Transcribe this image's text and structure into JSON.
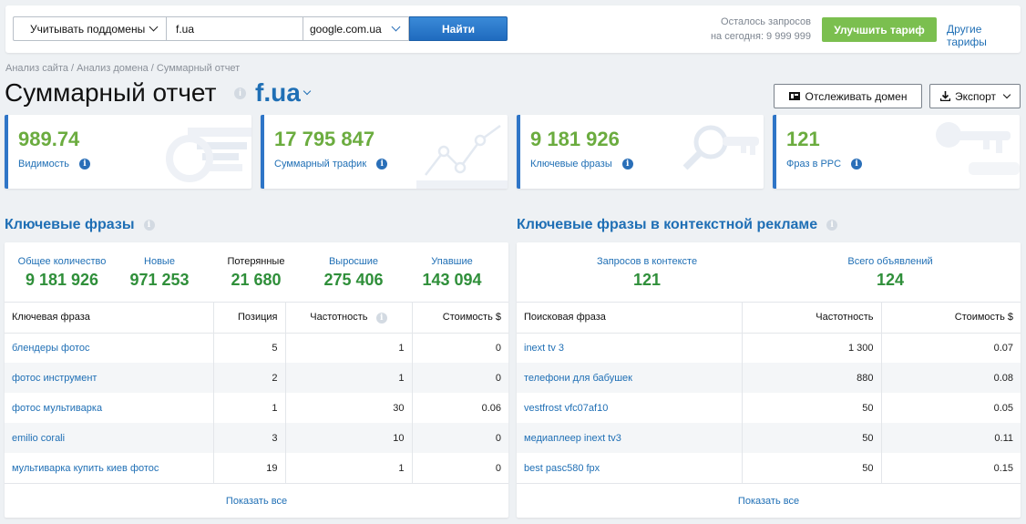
{
  "search": {
    "subdomains_label": "Учитывать поддомены",
    "domain_value": "f.ua",
    "engine_value": "google.com.ua",
    "find_label": "Найти"
  },
  "quota": {
    "line1": "Осталось запросов",
    "line2": "на сегодня: 9 999 999"
  },
  "upgrade_label": "Улучшить тариф",
  "other_tariffs_label": "Другие тарифы",
  "breadcrumb": "Анализ сайта / Анализ домена / Суммарный отчет",
  "page": {
    "title": "Суммарный отчет",
    "domain": "f.ua"
  },
  "actions": {
    "track_label": "Отслеживать домен",
    "export_label": "Экспорт"
  },
  "cards": [
    {
      "value": "989.74",
      "label": "Видимость"
    },
    {
      "value": "17 795 847",
      "label": "Суммарный трафик"
    },
    {
      "value": "9 181 926",
      "label": "Ключевые фразы"
    },
    {
      "value": "121",
      "label": "Фраз в PPC"
    }
  ],
  "keywords": {
    "title": "Ключевые фразы",
    "metrics": [
      {
        "label": "Общее количество",
        "value": "9 181 926"
      },
      {
        "label": "Новые",
        "value": "971 253"
      },
      {
        "label": "Потерянные",
        "value": "21 680"
      },
      {
        "label": "Выросшие",
        "value": "275 406"
      },
      {
        "label": "Упавшие",
        "value": "143 094"
      }
    ],
    "columns": [
      "Ключевая фраза",
      "Позиция",
      "Частотность",
      "Стоимость $"
    ],
    "rows": [
      {
        "phrase": "блендеры фотос",
        "position": "5",
        "frequency": "1",
        "cost": "0"
      },
      {
        "phrase": "фотос инструмент",
        "position": "2",
        "frequency": "1",
        "cost": "0"
      },
      {
        "phrase": "фотос мультиварка",
        "position": "1",
        "frequency": "30",
        "cost": "0.06"
      },
      {
        "phrase": "emilio corali",
        "position": "3",
        "frequency": "10",
        "cost": "0"
      },
      {
        "phrase": "мультиварка купить киев фотос",
        "position": "19",
        "frequency": "1",
        "cost": "0"
      }
    ],
    "show_all": "Показать все"
  },
  "ppc": {
    "title": "Ключевые фразы в контекстной рекламе",
    "metrics": [
      {
        "label": "Запросов в контексте",
        "value": "121"
      },
      {
        "label": "Всего объявлений",
        "value": "124"
      }
    ],
    "columns": [
      "Поисковая фраза",
      "Частотность",
      "Стоимость $"
    ],
    "rows": [
      {
        "phrase": "inext tv 3",
        "frequency": "1 300",
        "cost": "0.07"
      },
      {
        "phrase": "телефони для бабушек",
        "frequency": "880",
        "cost": "0.08"
      },
      {
        "phrase": "vestfrost vfc07af10",
        "frequency": "50",
        "cost": "0.05"
      },
      {
        "phrase": "медиаплеер inext tv3",
        "frequency": "50",
        "cost": "0.11"
      },
      {
        "phrase": "best pasc580 fpx",
        "frequency": "50",
        "cost": "0.15"
      }
    ],
    "show_all": "Показать все"
  }
}
